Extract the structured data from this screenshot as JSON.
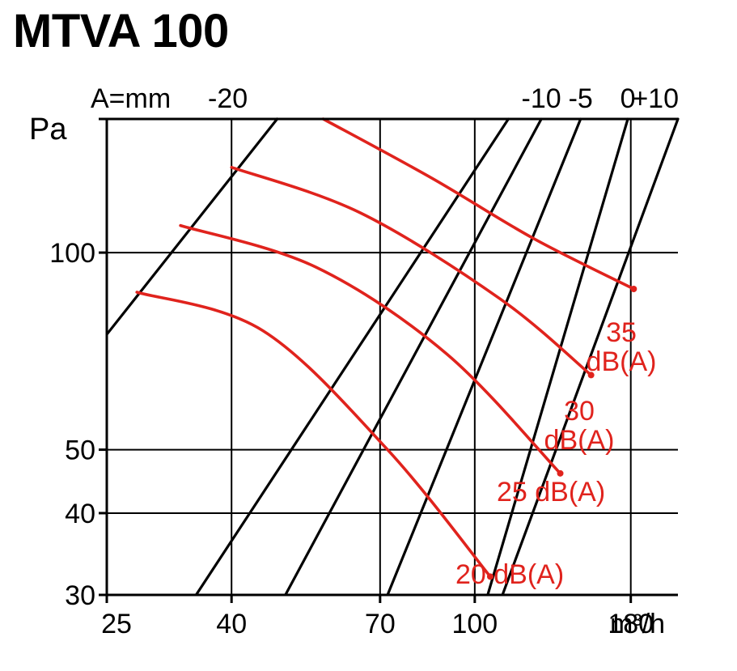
{
  "page": {
    "title": "MTVA 100"
  },
  "chart_data": {
    "type": "line",
    "title": "MTVA 100",
    "xlabel": "m³/h",
    "ylabel": "Pa",
    "x_scale": "log",
    "y_scale": "log",
    "xlim": [
      25,
      215
    ],
    "ylim": [
      30,
      160
    ],
    "grid": true,
    "x_ticks": [
      {
        "value": 25,
        "label": "25"
      },
      {
        "value": 40,
        "label": "40"
      },
      {
        "value": 70,
        "label": "70"
      },
      {
        "value": 100,
        "label": "100"
      },
      {
        "value": 180,
        "label": "180"
      }
    ],
    "y_ticks": [
      {
        "value": 30,
        "label": "30"
      },
      {
        "value": 40,
        "label": "40"
      },
      {
        "value": 50,
        "label": "50"
      },
      {
        "value": 100,
        "label": "100"
      }
    ],
    "damper_label_prefix": "A=mm",
    "damper_lines": [
      {
        "label": "-20",
        "color": "#000000",
        "points": [
          [
            25,
            75
          ],
          [
            47.5,
            160
          ]
        ]
      },
      {
        "label": "",
        "color": "#000000",
        "points": [
          [
            35,
            30
          ],
          [
            113.5,
            160
          ]
        ]
      },
      {
        "label": "-10",
        "color": "#000000",
        "points": [
          [
            49,
            30
          ],
          [
            128.5,
            160
          ]
        ]
      },
      {
        "label": "-5",
        "color": "#000000",
        "points": [
          [
            72,
            30
          ],
          [
            149,
            160
          ]
        ]
      },
      {
        "label": "0",
        "color": "#000000",
        "points": [
          [
            105,
            30
          ],
          [
            178,
            160
          ]
        ]
      },
      {
        "label": "+10",
        "color": "#000000",
        "points": [
          [
            111,
            30
          ],
          [
            215,
            160
          ]
        ]
      }
    ],
    "series": [
      {
        "name": "35 dB(A)",
        "color": "#e0231d",
        "points": [
          [
            56.5,
            160
          ],
          [
            85,
            130
          ],
          [
            125,
            105
          ],
          [
            182,
            88
          ]
        ]
      },
      {
        "name": "30 dB(A)",
        "color": "#e0231d",
        "points": [
          [
            40,
            135
          ],
          [
            65,
            115
          ],
          [
            110,
            85
          ],
          [
            155,
            65
          ]
        ]
      },
      {
        "name": "25 dB(A)",
        "color": "#e0231d",
        "points": [
          [
            33,
            110
          ],
          [
            55,
            95
          ],
          [
            90,
            70
          ],
          [
            138,
            46
          ]
        ]
      },
      {
        "name": "20 dB(A)",
        "color": "#e0231d",
        "points": [
          [
            28,
            87
          ],
          [
            45,
            76
          ],
          [
            72,
            50
          ],
          [
            106,
            32
          ]
        ]
      }
    ],
    "annotations": [
      {
        "lines": [
          "35",
          "dB(A)"
        ]
      },
      {
        "lines": [
          "30",
          "dB(A)"
        ]
      },
      {
        "lines": [
          "25 dB(A)"
        ]
      },
      {
        "lines": [
          "20 dB(A)"
        ]
      }
    ]
  }
}
